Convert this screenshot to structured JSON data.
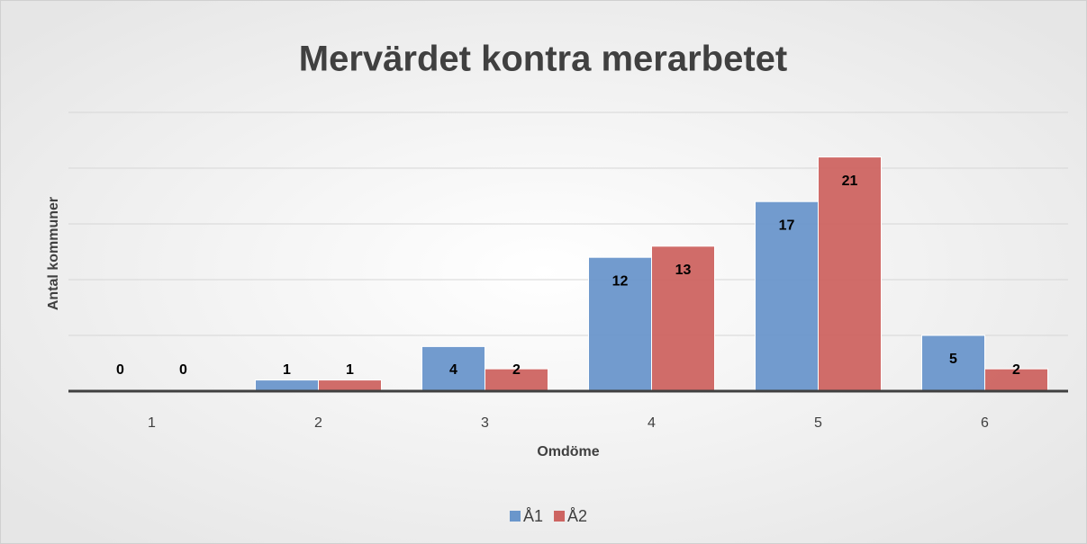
{
  "chart_data": {
    "type": "bar",
    "title": "Mervärdet kontra merarbetet",
    "x_label": "Omdöme",
    "y_label": "Antal kommuner",
    "categories": [
      "1",
      "2",
      "3",
      "4",
      "5",
      "6"
    ],
    "series": [
      {
        "name": "Å1",
        "color": "#6a96cb",
        "values": [
          0,
          1,
          4,
          12,
          17,
          5
        ]
      },
      {
        "name": "Å2",
        "color": "#cd6461",
        "values": [
          0,
          1,
          2,
          13,
          21,
          2
        ]
      }
    ],
    "ylim": [
      0,
      25
    ],
    "yticks": [
      0,
      5,
      10,
      15,
      20,
      25
    ],
    "grid": true,
    "legend": "bottom"
  }
}
